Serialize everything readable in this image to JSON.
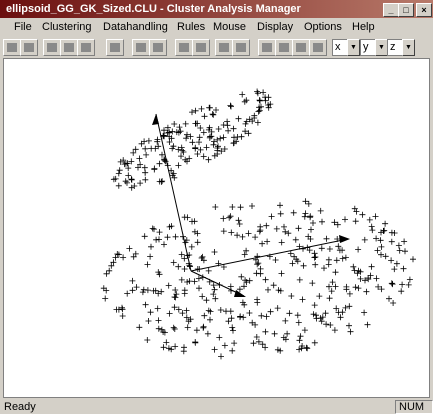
{
  "window": {
    "title": "ellipsoid_GG_GK_Sized.CLU - Cluster Analysis Manager"
  },
  "menu": [
    "File",
    "Clustering",
    "Datahandling",
    "Rules",
    "Mouse",
    "Display",
    "Options",
    "Help"
  ],
  "toolbar": {
    "axis_selectors": [
      "x",
      "y",
      "z"
    ]
  },
  "status": {
    "message": "Ready",
    "indicator": "NUM"
  }
}
